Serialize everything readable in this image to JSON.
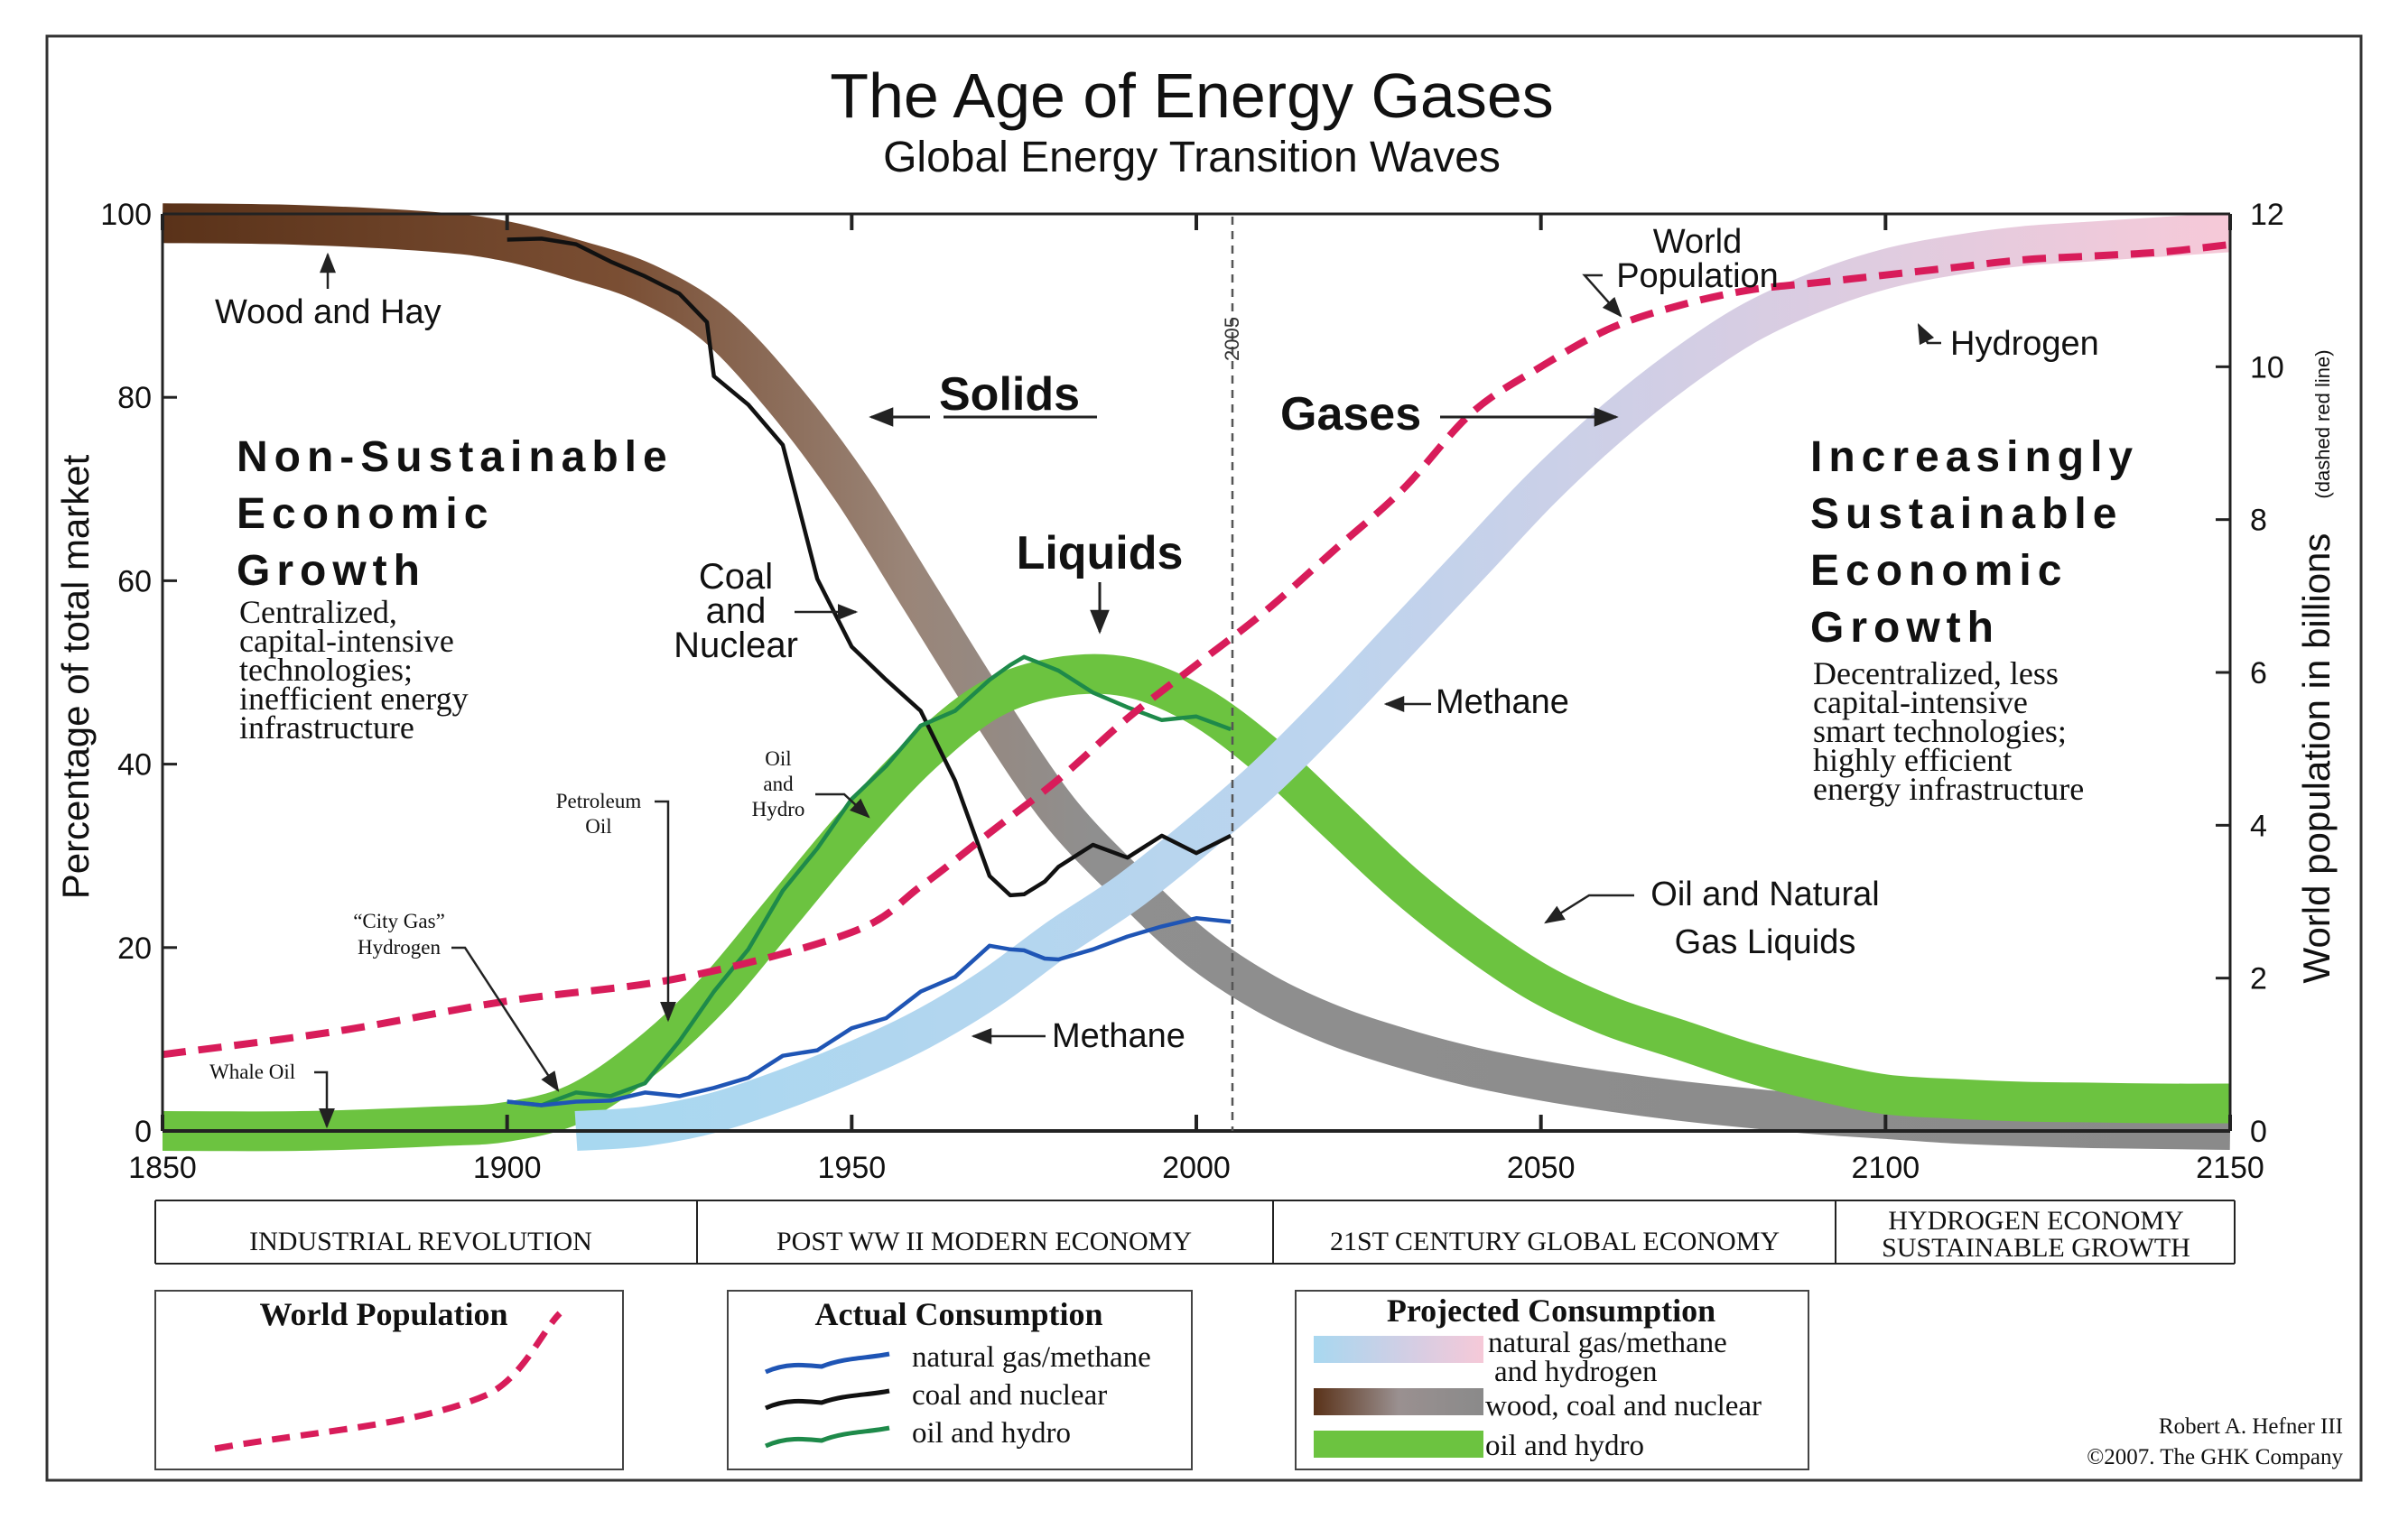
{
  "chart_data": {
    "type": "line",
    "title": "The Age of Energy Gases",
    "subtitle": "Global Energy Transition Waves",
    "ylabel": "Percentage of total market",
    "y2label": "World population in billions",
    "y2note": "(dashed red line)",
    "xlim": [
      1850,
      2150
    ],
    "ylim": [
      0,
      100
    ],
    "y2lim": [
      0,
      12
    ],
    "x_ticks": [
      "1850",
      "1900",
      "1950",
      "2000",
      "2050",
      "2100",
      "2150"
    ],
    "y_ticks": [
      "100",
      "80",
      "60",
      "40",
      "20",
      "0"
    ],
    "y2_ticks": [
      "12",
      "10",
      "8",
      "6",
      "4",
      "2",
      "0"
    ],
    "vline_label": "2005",
    "projected_series": [
      {
        "name": "wood, coal and nuclear",
        "x": [
          1850,
          1870,
          1890,
          1900,
          1910,
          1920,
          1930,
          1940,
          1950,
          1960,
          1970,
          1980,
          1990,
          2000,
          2010,
          2020,
          2030,
          2040,
          2050,
          2060,
          2070,
          2080,
          2090,
          2100,
          2110,
          2120,
          2130,
          2140,
          2150
        ],
        "y": [
          99,
          98.8,
          98,
          97,
          95,
          92.5,
          88,
          80,
          70,
          58,
          46,
          35,
          27,
          20,
          15,
          11.5,
          9,
          7,
          5.5,
          4.3,
          3.3,
          2.5,
          1.8,
          1.3,
          0.8,
          0.5,
          0.3,
          0.2,
          0.1
        ]
      },
      {
        "name": "oil and hydro",
        "x": [
          1850,
          1870,
          1890,
          1900,
          1910,
          1920,
          1930,
          1940,
          1950,
          1960,
          1970,
          1980,
          1990,
          2000,
          2010,
          2020,
          2030,
          2040,
          2050,
          2060,
          2070,
          2080,
          2090,
          2100,
          2110,
          2120,
          2130,
          2140,
          2150
        ],
        "y": [
          0,
          0,
          0.5,
          1,
          3,
          8,
          15,
          24,
          33,
          41,
          47,
          49.5,
          49.5,
          46.5,
          41,
          34,
          27,
          21,
          16,
          12.5,
          10,
          7.5,
          5.5,
          4,
          3.5,
          3.2,
          3.1,
          3,
          3
        ]
      },
      {
        "name": "natural gas/methane and hydrogen",
        "x": [
          1910,
          1920,
          1930,
          1940,
          1950,
          1960,
          1970,
          1980,
          1990,
          2000,
          2010,
          2020,
          2030,
          2040,
          2050,
          2060,
          2070,
          2080,
          2090,
          2100,
          2110,
          2120,
          2130,
          2140,
          2150
        ],
        "y": [
          0,
          0.5,
          2,
          4.5,
          7.5,
          11,
          15.5,
          21,
          26,
          32,
          38.5,
          46,
          54,
          62,
          70,
          77,
          83,
          88,
          91.5,
          94,
          95.5,
          96.5,
          97,
          97.5,
          98
        ]
      }
    ],
    "actual_series": [
      {
        "name": "coal and nuclear",
        "x": [
          1900,
          1905,
          1910,
          1915,
          1920,
          1925,
          1929,
          1930,
          1935,
          1940,
          1945,
          1950,
          1955,
          1960,
          1965,
          1970,
          1973,
          1975,
          1978,
          1980,
          1985,
          1990,
          1995,
          2000,
          2005
        ],
        "y": [
          97,
          97.5,
          96.5,
          95,
          93,
          91.5,
          88,
          82.5,
          79,
          75,
          60,
          53,
          49,
          46,
          38,
          28,
          25.5,
          26,
          27,
          29,
          31,
          30,
          32,
          30.5,
          32
        ]
      },
      {
        "name": "oil and hydro",
        "x": [
          1900,
          1905,
          1910,
          1915,
          1920,
          1925,
          1930,
          1935,
          1940,
          1945,
          1950,
          1955,
          1960,
          1965,
          1970,
          1973,
          1975,
          1978,
          1980,
          1985,
          1990,
          1995,
          2000,
          2005
        ],
        "y": [
          3,
          3,
          4,
          4,
          5,
          10,
          15,
          20,
          26,
          31,
          36,
          40,
          44,
          46,
          49,
          51,
          51.5,
          51,
          50,
          48,
          46,
          45,
          45,
          44
        ]
      },
      {
        "name": "natural gas/methane",
        "x": [
          1900,
          1905,
          1910,
          1915,
          1920,
          1925,
          1930,
          1935,
          1940,
          1945,
          1950,
          1955,
          1960,
          1965,
          1970,
          1973,
          1975,
          1978,
          1980,
          1985,
          1990,
          1995,
          2000,
          2005
        ],
        "y": [
          3,
          3,
          3,
          3.5,
          4,
          4,
          4.5,
          6,
          8,
          9,
          11,
          12.5,
          15,
          17,
          20,
          20,
          19.5,
          19,
          18.5,
          20,
          21,
          22.5,
          23,
          23
        ]
      }
    ],
    "population_series": {
      "name": "World Population",
      "x": [
        1850,
        1875,
        1900,
        1925,
        1950,
        1960,
        1970,
        1980,
        1990,
        2000,
        2010,
        2020,
        2030,
        2040,
        2050,
        2060,
        2070,
        2080,
        2090,
        2100,
        2110,
        2120,
        2130,
        2140,
        2150
      ],
      "y": [
        1.0,
        1.3,
        1.7,
        2.0,
        2.6,
        3.2,
        3.9,
        4.6,
        5.4,
        6.1,
        6.8,
        7.6,
        8.4,
        9.4,
        10.0,
        10.5,
        10.8,
        11.0,
        11.1,
        11.2,
        11.3,
        11.4,
        11.45,
        11.5,
        11.6
      ]
    }
  },
  "annotations": {
    "wood_and_hay": "Wood and Hay",
    "solids": "Solids",
    "gases": "Gases",
    "liquids": "Liquids",
    "world_population_line1": "World",
    "world_population_line2": "Population",
    "hydrogen": "Hydrogen",
    "coal_line1": "Coal",
    "coal_line2": "and",
    "coal_line3": "Nuclear",
    "methane_upper": "Methane",
    "methane_lower": "Methane",
    "oil_ngl_line1": "Oil and Natural",
    "oil_ngl_line2": "Gas Liquids",
    "oil_hydro_line1": "Oil",
    "oil_hydro_line2": "and",
    "oil_hydro_line3": "Hydro",
    "petroleum_line1": "Petroleum",
    "petroleum_line2": "Oil",
    "city_gas_line1": "“City Gas”",
    "city_gas_line2": "Hydrogen",
    "whale_oil": "Whale Oil",
    "left_heading": [
      "Non-Sustainable",
      "Economic",
      "Growth"
    ],
    "left_body": [
      "Centralized,",
      "capital-intensive",
      "technologies;",
      "inefficient energy",
      "infrastructure"
    ],
    "right_heading": [
      "Increasingly",
      "Sustainable",
      "Economic",
      "Growth"
    ],
    "right_body": [
      "Decentralized, less",
      "capital-intensive",
      "smart technologies;",
      "highly efficient",
      "energy infrastructure"
    ]
  },
  "eras": [
    "INDUSTRIAL REVOLUTION",
    "POST WW II MODERN ECONOMY",
    "21ST CENTURY GLOBAL ECONOMY",
    "HYDROGEN ECONOMY",
    "SUSTAINABLE GROWTH"
  ],
  "legend": {
    "population_title": "World Population",
    "actual_title": "Actual Consumption",
    "actual_items": [
      "natural gas/methane",
      "coal and nuclear",
      "oil and hydro"
    ],
    "projected_title": "Projected Consumption",
    "projected_items": [
      "natural gas/methane",
      "and hydrogen",
      "wood, coal and nuclear",
      "oil and hydro"
    ]
  },
  "credit": {
    "line1": "Robert A. Hefner III",
    "line2": "©2007. The GHK Company"
  },
  "colors": {
    "population": "#d81c5a",
    "methane_actual": "#1f55b5",
    "coal_actual": "#111111",
    "oil_actual": "#1e8a4a",
    "oil_band": "#6cc340",
    "wood_start": "#5a3219",
    "coal_mid": "#8c8c8c",
    "gas_start": "#a8d8f0",
    "gas_mid": "#d6cde3",
    "gas_end": "#f6c9d8"
  }
}
